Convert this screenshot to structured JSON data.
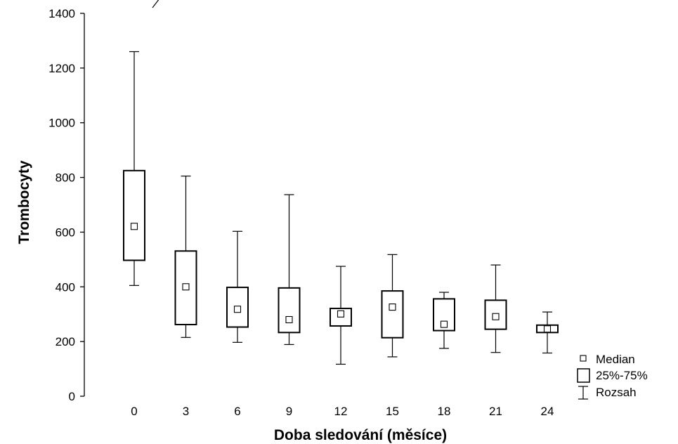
{
  "chart_data": {
    "type": "box",
    "xlabel": "Doba sledování (měsíce)",
    "ylabel": "Trombocyty",
    "ylim": [
      0,
      1400
    ],
    "yticks": [
      0,
      200,
      400,
      600,
      800,
      1000,
      1200,
      1400
    ],
    "categories": [
      "0",
      "3",
      "6",
      "9",
      "12",
      "15",
      "18",
      "21",
      "24"
    ],
    "series": [
      {
        "category": "0",
        "min": 405,
        "q1": 497,
        "median": 621,
        "q3": 825,
        "max": 1260
      },
      {
        "category": "3",
        "min": 215,
        "q1": 262,
        "median": 400,
        "q3": 531,
        "max": 805
      },
      {
        "category": "6",
        "min": 197,
        "q1": 253,
        "median": 318,
        "q3": 398,
        "max": 603
      },
      {
        "category": "9",
        "min": 189,
        "q1": 233,
        "median": 280,
        "q3": 396,
        "max": 737
      },
      {
        "category": "12",
        "min": 117,
        "q1": 257,
        "median": 301,
        "q3": 321,
        "max": 475
      },
      {
        "category": "15",
        "min": 144,
        "q1": 214,
        "median": 326,
        "q3": 385,
        "max": 518
      },
      {
        "category": "18",
        "min": 175,
        "q1": 240,
        "median": 263,
        "q3": 356,
        "max": 380
      },
      {
        "category": "21",
        "min": 160,
        "q1": 245,
        "median": 291,
        "q3": 351,
        "max": 480
      },
      {
        "category": "24",
        "min": 158,
        "q1": 233,
        "median": 246,
        "q3": 260,
        "max": 308
      }
    ],
    "legend": {
      "position": "bottom-right",
      "items": [
        {
          "label": "Median",
          "symbol": "small-square"
        },
        {
          "label": "25%-75%",
          "symbol": "box"
        },
        {
          "label": "Rozsah",
          "symbol": "whisker"
        }
      ]
    },
    "grid": false
  }
}
